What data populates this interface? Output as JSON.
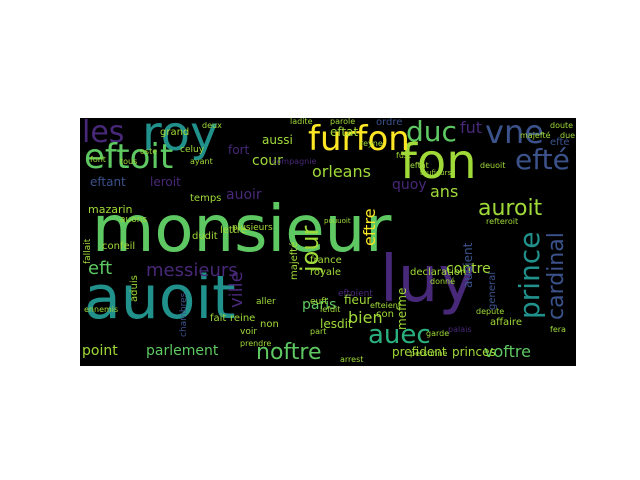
{
  "figure": {
    "background": "#000000",
    "page_background": "#ffffff",
    "palette": {
      "green": "#5ec962",
      "lime": "#a0da39",
      "yellow": "#fde725",
      "teal": "#21918c",
      "blue": "#3b528b",
      "purple": "#482878",
      "deep": "#440154",
      "cyan": "#2ab07f"
    },
    "words": [
      {
        "text": "monsieur",
        "color": "#5ec962"
      },
      {
        "text": "auoit",
        "color": "#21918c"
      },
      {
        "text": "luy",
        "color": "#482878"
      },
      {
        "text": "roy",
        "color": "#21918c"
      },
      {
        "text": "fon",
        "color": "#a0da39"
      },
      {
        "text": "les",
        "color": "#482878"
      },
      {
        "text": "vne",
        "color": "#3b528b"
      },
      {
        "text": "efté",
        "color": "#3b528b"
      },
      {
        "text": "eftoit",
        "color": "#5ec962"
      },
      {
        "text": "furfon",
        "color": "#fde725"
      },
      {
        "text": "duc",
        "color": "#5ec962"
      },
      {
        "text": "prince",
        "color": "#21918c"
      },
      {
        "text": "cardinal",
        "color": "#3b528b"
      },
      {
        "text": "auroit",
        "color": "#a0da39"
      },
      {
        "text": "auec",
        "color": "#2ab07f"
      },
      {
        "text": "eft",
        "color": "#5ec962"
      },
      {
        "text": "messieurs",
        "color": "#482878"
      },
      {
        "text": "noftre",
        "color": "#5ec962"
      },
      {
        "text": "parlement",
        "color": "#5ec962"
      },
      {
        "text": "point",
        "color": "#a0da39"
      },
      {
        "text": "voftre",
        "color": "#5ec962"
      },
      {
        "text": "princes",
        "color": "#a0da39"
      },
      {
        "text": "prefident",
        "color": "#a0da39"
      },
      {
        "text": "bien",
        "color": "#a0da39"
      },
      {
        "text": "contre",
        "color": "#a0da39"
      },
      {
        "text": "orleans",
        "color": "#a0da39"
      },
      {
        "text": "jour",
        "color": "#a0da39"
      },
      {
        "text": "eftre",
        "color": "#fde725"
      },
      {
        "text": "cour",
        "color": "#a0da39"
      },
      {
        "text": "quoy",
        "color": "#482878"
      },
      {
        "text": "fut",
        "color": "#482878"
      },
      {
        "text": "eftat",
        "color": "#a0da39"
      },
      {
        "text": "ans",
        "color": "#a0da39"
      },
      {
        "text": "auoient",
        "color": "#3b528b"
      },
      {
        "text": "ville",
        "color": "#482878"
      },
      {
        "text": "paris",
        "color": "#5ec962"
      },
      {
        "text": "lesdit",
        "color": "#a0da39"
      },
      {
        "text": "mefme",
        "color": "#a0da39"
      },
      {
        "text": "fieur",
        "color": "#a0da39"
      },
      {
        "text": "eftant",
        "color": "#3b528b"
      },
      {
        "text": "leroit",
        "color": "#482878"
      },
      {
        "text": "mazarin",
        "color": "#a0da39"
      },
      {
        "text": "auoir",
        "color": "#482878"
      },
      {
        "text": "aussi",
        "color": "#a0da39"
      },
      {
        "text": "fort",
        "color": "#482878"
      },
      {
        "text": "grand",
        "color": "#a0da39"
      },
      {
        "text": "ordre",
        "color": "#3b528b"
      },
      {
        "text": "temps",
        "color": "#a0da39"
      },
      {
        "text": "reine",
        "color": "#a0da39"
      },
      {
        "text": "fait",
        "color": "#a0da39"
      },
      {
        "text": "non",
        "color": "#a0da39"
      },
      {
        "text": "efté",
        "color": "#3b528b"
      },
      {
        "text": "general",
        "color": "#3b528b"
      },
      {
        "text": "affaire",
        "color": "#a0da39"
      },
      {
        "text": "declaration",
        "color": "#a0da39"
      },
      {
        "text": "majefté",
        "color": "#a0da39"
      },
      {
        "text": "royale",
        "color": "#a0da39"
      },
      {
        "text": "france",
        "color": "#a0da39"
      },
      {
        "text": "lettre",
        "color": "#a0da39"
      },
      {
        "text": "dudit",
        "color": "#a0da39"
      },
      {
        "text": "confeil",
        "color": "#a0da39"
      },
      {
        "text": "aduis",
        "color": "#a0da39"
      },
      {
        "text": "fallait",
        "color": "#a0da39"
      },
      {
        "text": "auons",
        "color": "#a0da39"
      },
      {
        "text": "celuy",
        "color": "#a0da39"
      },
      {
        "text": "compagnie",
        "color": "#482878"
      },
      {
        "text": "deuoit",
        "color": "#a0da39"
      },
      {
        "text": "majefté",
        "color": "#a0da39"
      },
      {
        "text": "plusieurs",
        "color": "#a0da39"
      },
      {
        "text": "eftoient",
        "color": "#482878"
      },
      {
        "text": "part",
        "color": "#a0da39"
      },
      {
        "text": "aller",
        "color": "#a0da39"
      },
      {
        "text": "voir",
        "color": "#a0da39"
      },
      {
        "text": "arrest",
        "color": "#a0da39"
      },
      {
        "text": "fera",
        "color": "#a0da39"
      },
      {
        "text": "garde",
        "color": "#a0da39"
      },
      {
        "text": "donné",
        "color": "#a0da39"
      },
      {
        "text": "efteient",
        "color": "#a0da39"
      },
      {
        "text": "chambres",
        "color": "#3b528b"
      },
      {
        "text": "ennemis",
        "color": "#a0da39"
      },
      {
        "text": "font",
        "color": "#a0da39"
      },
      {
        "text": "lefdit",
        "color": "#a0da39"
      },
      {
        "text": "con",
        "color": "#a0da39"
      },
      {
        "text": "euft",
        "color": "#a0da39"
      },
      {
        "text": "depute",
        "color": "#a0da39"
      },
      {
        "text": "eftat",
        "color": "#a0da39"
      },
      {
        "text": "doute",
        "color": "#a0da39"
      },
      {
        "text": "due",
        "color": "#a0da39"
      },
      {
        "text": "oste",
        "color": "#a0da39"
      },
      {
        "text": "parole",
        "color": "#a0da39"
      },
      {
        "text": "ladite",
        "color": "#a0da39"
      },
      {
        "text": "deux",
        "color": "#a0da39"
      },
      {
        "text": "palais",
        "color": "#482878"
      },
      {
        "text": "refteroit",
        "color": "#a0da39"
      },
      {
        "text": "personne",
        "color": "#a0da39"
      },
      {
        "text": "pouuoit",
        "color": "#a0da39"
      },
      {
        "text": "ayant",
        "color": "#a0da39"
      },
      {
        "text": "prendre",
        "color": "#a0da39"
      },
      {
        "text": "toufiours",
        "color": "#a0da39"
      },
      {
        "text": "reyne",
        "color": "#a0da39"
      },
      {
        "text": "fust",
        "color": "#a0da39"
      },
      {
        "text": "tous",
        "color": "#a0da39"
      }
    ]
  }
}
